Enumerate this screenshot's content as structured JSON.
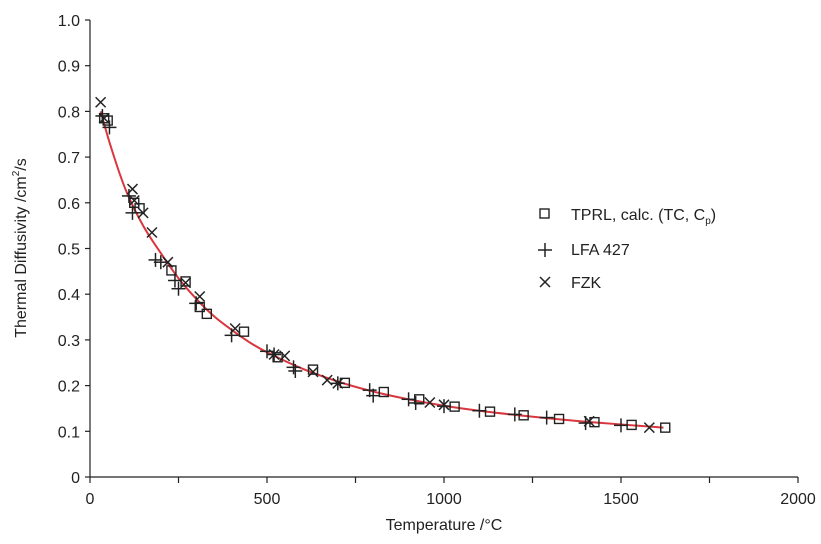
{
  "chart_data": {
    "type": "scatter",
    "title": "",
    "xlabel": "Temperature /°C",
    "ylabel_main": "Thermal Diffusivity /cm",
    "ylabel_sup": "2",
    "ylabel_tail": "/s",
    "xlim": [
      0,
      2000
    ],
    "ylim": [
      0,
      1.0
    ],
    "x_ticks": [
      "0",
      "500",
      "1000",
      "1500",
      "2000"
    ],
    "y_ticks": [
      "0",
      "0.1",
      "0.2",
      "0.3",
      "0.4",
      "0.5",
      "0.6",
      "0.7",
      "0.8",
      "0.9",
      "1.0"
    ],
    "grid": false,
    "legend_position": "right",
    "fit_color": "#d9363e",
    "fit_curve": {
      "x": [
        30,
        60,
        100,
        150,
        200,
        250,
        300,
        350,
        400,
        450,
        500,
        600,
        700,
        800,
        900,
        1000,
        1100,
        1200,
        1300,
        1400,
        1500,
        1620
      ],
      "y": [
        0.8,
        0.72,
        0.63,
        0.55,
        0.49,
        0.435,
        0.39,
        0.352,
        0.322,
        0.295,
        0.273,
        0.237,
        0.209,
        0.187,
        0.17,
        0.156,
        0.145,
        0.136,
        0.128,
        0.121,
        0.115,
        0.108
      ]
    },
    "series": [
      {
        "name": "TPRL, calc. (TC, C",
        "name_sub": "p",
        "name_tail": ")",
        "marker": "square",
        "x": [
          40,
          50,
          125,
          140,
          230,
          270,
          310,
          330,
          435,
          530,
          630,
          720,
          830,
          930,
          1030,
          1130,
          1225,
          1325,
          1425,
          1530,
          1625
        ],
        "y": [
          0.785,
          0.78,
          0.6,
          0.588,
          0.452,
          0.428,
          0.372,
          0.357,
          0.318,
          0.262,
          0.235,
          0.206,
          0.186,
          0.17,
          0.154,
          0.143,
          0.135,
          0.127,
          0.12,
          0.114,
          0.108
        ]
      },
      {
        "name": "LFA 427",
        "marker": "plus",
        "x": [
          35,
          55,
          110,
          120,
          185,
          200,
          240,
          250,
          300,
          400,
          500,
          520,
          575,
          580,
          700,
          790,
          800,
          900,
          920,
          1000,
          1100,
          1200,
          1290,
          1400,
          1500
        ],
        "y": [
          0.79,
          0.765,
          0.615,
          0.578,
          0.475,
          0.47,
          0.43,
          0.412,
          0.38,
          0.31,
          0.275,
          0.268,
          0.24,
          0.232,
          0.205,
          0.19,
          0.178,
          0.17,
          0.162,
          0.155,
          0.145,
          0.137,
          0.13,
          0.118,
          0.113
        ]
      },
      {
        "name": "FZK",
        "marker": "x",
        "x": [
          30,
          40,
          120,
          125,
          150,
          175,
          220,
          270,
          310,
          410,
          520,
          550,
          630,
          670,
          700,
          960,
          1000,
          1410,
          1580
        ],
        "y": [
          0.82,
          0.785,
          0.63,
          0.605,
          0.578,
          0.535,
          0.47,
          0.425,
          0.395,
          0.325,
          0.268,
          0.265,
          0.23,
          0.212,
          0.205,
          0.163,
          0.158,
          0.122,
          0.108
        ]
      }
    ]
  }
}
